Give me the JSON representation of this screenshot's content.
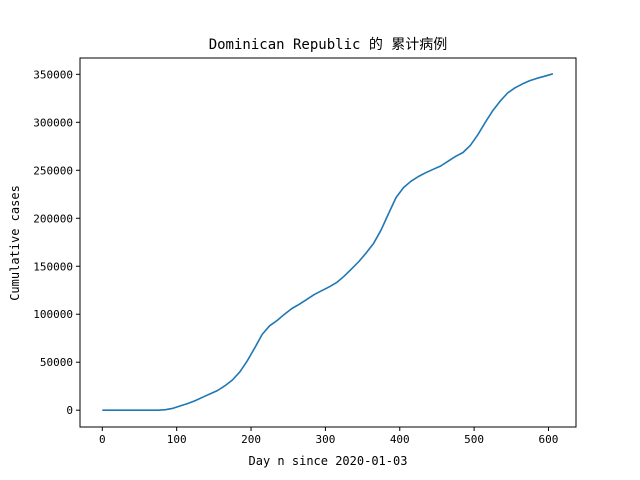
{
  "chart_data": {
    "type": "line",
    "title": "Dominican Republic 的 累计病例",
    "xlabel": "Day n since 2020-01-03",
    "ylabel": "Cumulative cases",
    "xlim": [
      -30,
      637
    ],
    "ylim": [
      -17500,
      367000
    ],
    "xticks": [
      0,
      100,
      200,
      300,
      400,
      500,
      600
    ],
    "yticks": [
      0,
      50000,
      100000,
      150000,
      200000,
      250000,
      300000,
      350000
    ],
    "xtick_labels": [
      "0",
      "100",
      "200",
      "300",
      "400",
      "500",
      "600"
    ],
    "ytick_labels": [
      "0",
      "50000",
      "100000",
      "150000",
      "200000",
      "250000",
      "300000",
      "350000"
    ],
    "grid": false,
    "color": "#1f77b4",
    "series": [
      {
        "x": [
          0,
          20,
          40,
          60,
          75,
          85,
          95,
          105,
          115,
          125,
          135,
          145,
          155,
          165,
          175,
          185,
          195,
          205,
          215,
          225,
          235,
          245,
          255,
          265,
          275,
          285,
          295,
          305,
          315,
          325,
          335,
          345,
          355,
          365,
          375,
          385,
          395,
          405,
          415,
          425,
          435,
          445,
          455,
          465,
          475,
          485,
          495,
          505,
          515,
          525,
          535,
          545,
          555,
          565,
          575,
          585,
          595,
          606
        ],
        "y": [
          0,
          0,
          0,
          0,
          0,
          500,
          2000,
          4500,
          7000,
          10000,
          13500,
          17000,
          20500,
          25500,
          31500,
          40000,
          51500,
          65000,
          79000,
          88000,
          93500,
          100000,
          106000,
          110500,
          115500,
          120500,
          124500,
          128500,
          133000,
          139500,
          147000,
          155000,
          164000,
          174000,
          188000,
          205000,
          221500,
          232000,
          238500,
          243500,
          247500,
          251000,
          254500,
          259500,
          264500,
          268500,
          276000,
          287000,
          300000,
          312000,
          322000,
          330500,
          336000,
          340000,
          343500,
          346000,
          348000,
          350500
        ]
      }
    ]
  }
}
